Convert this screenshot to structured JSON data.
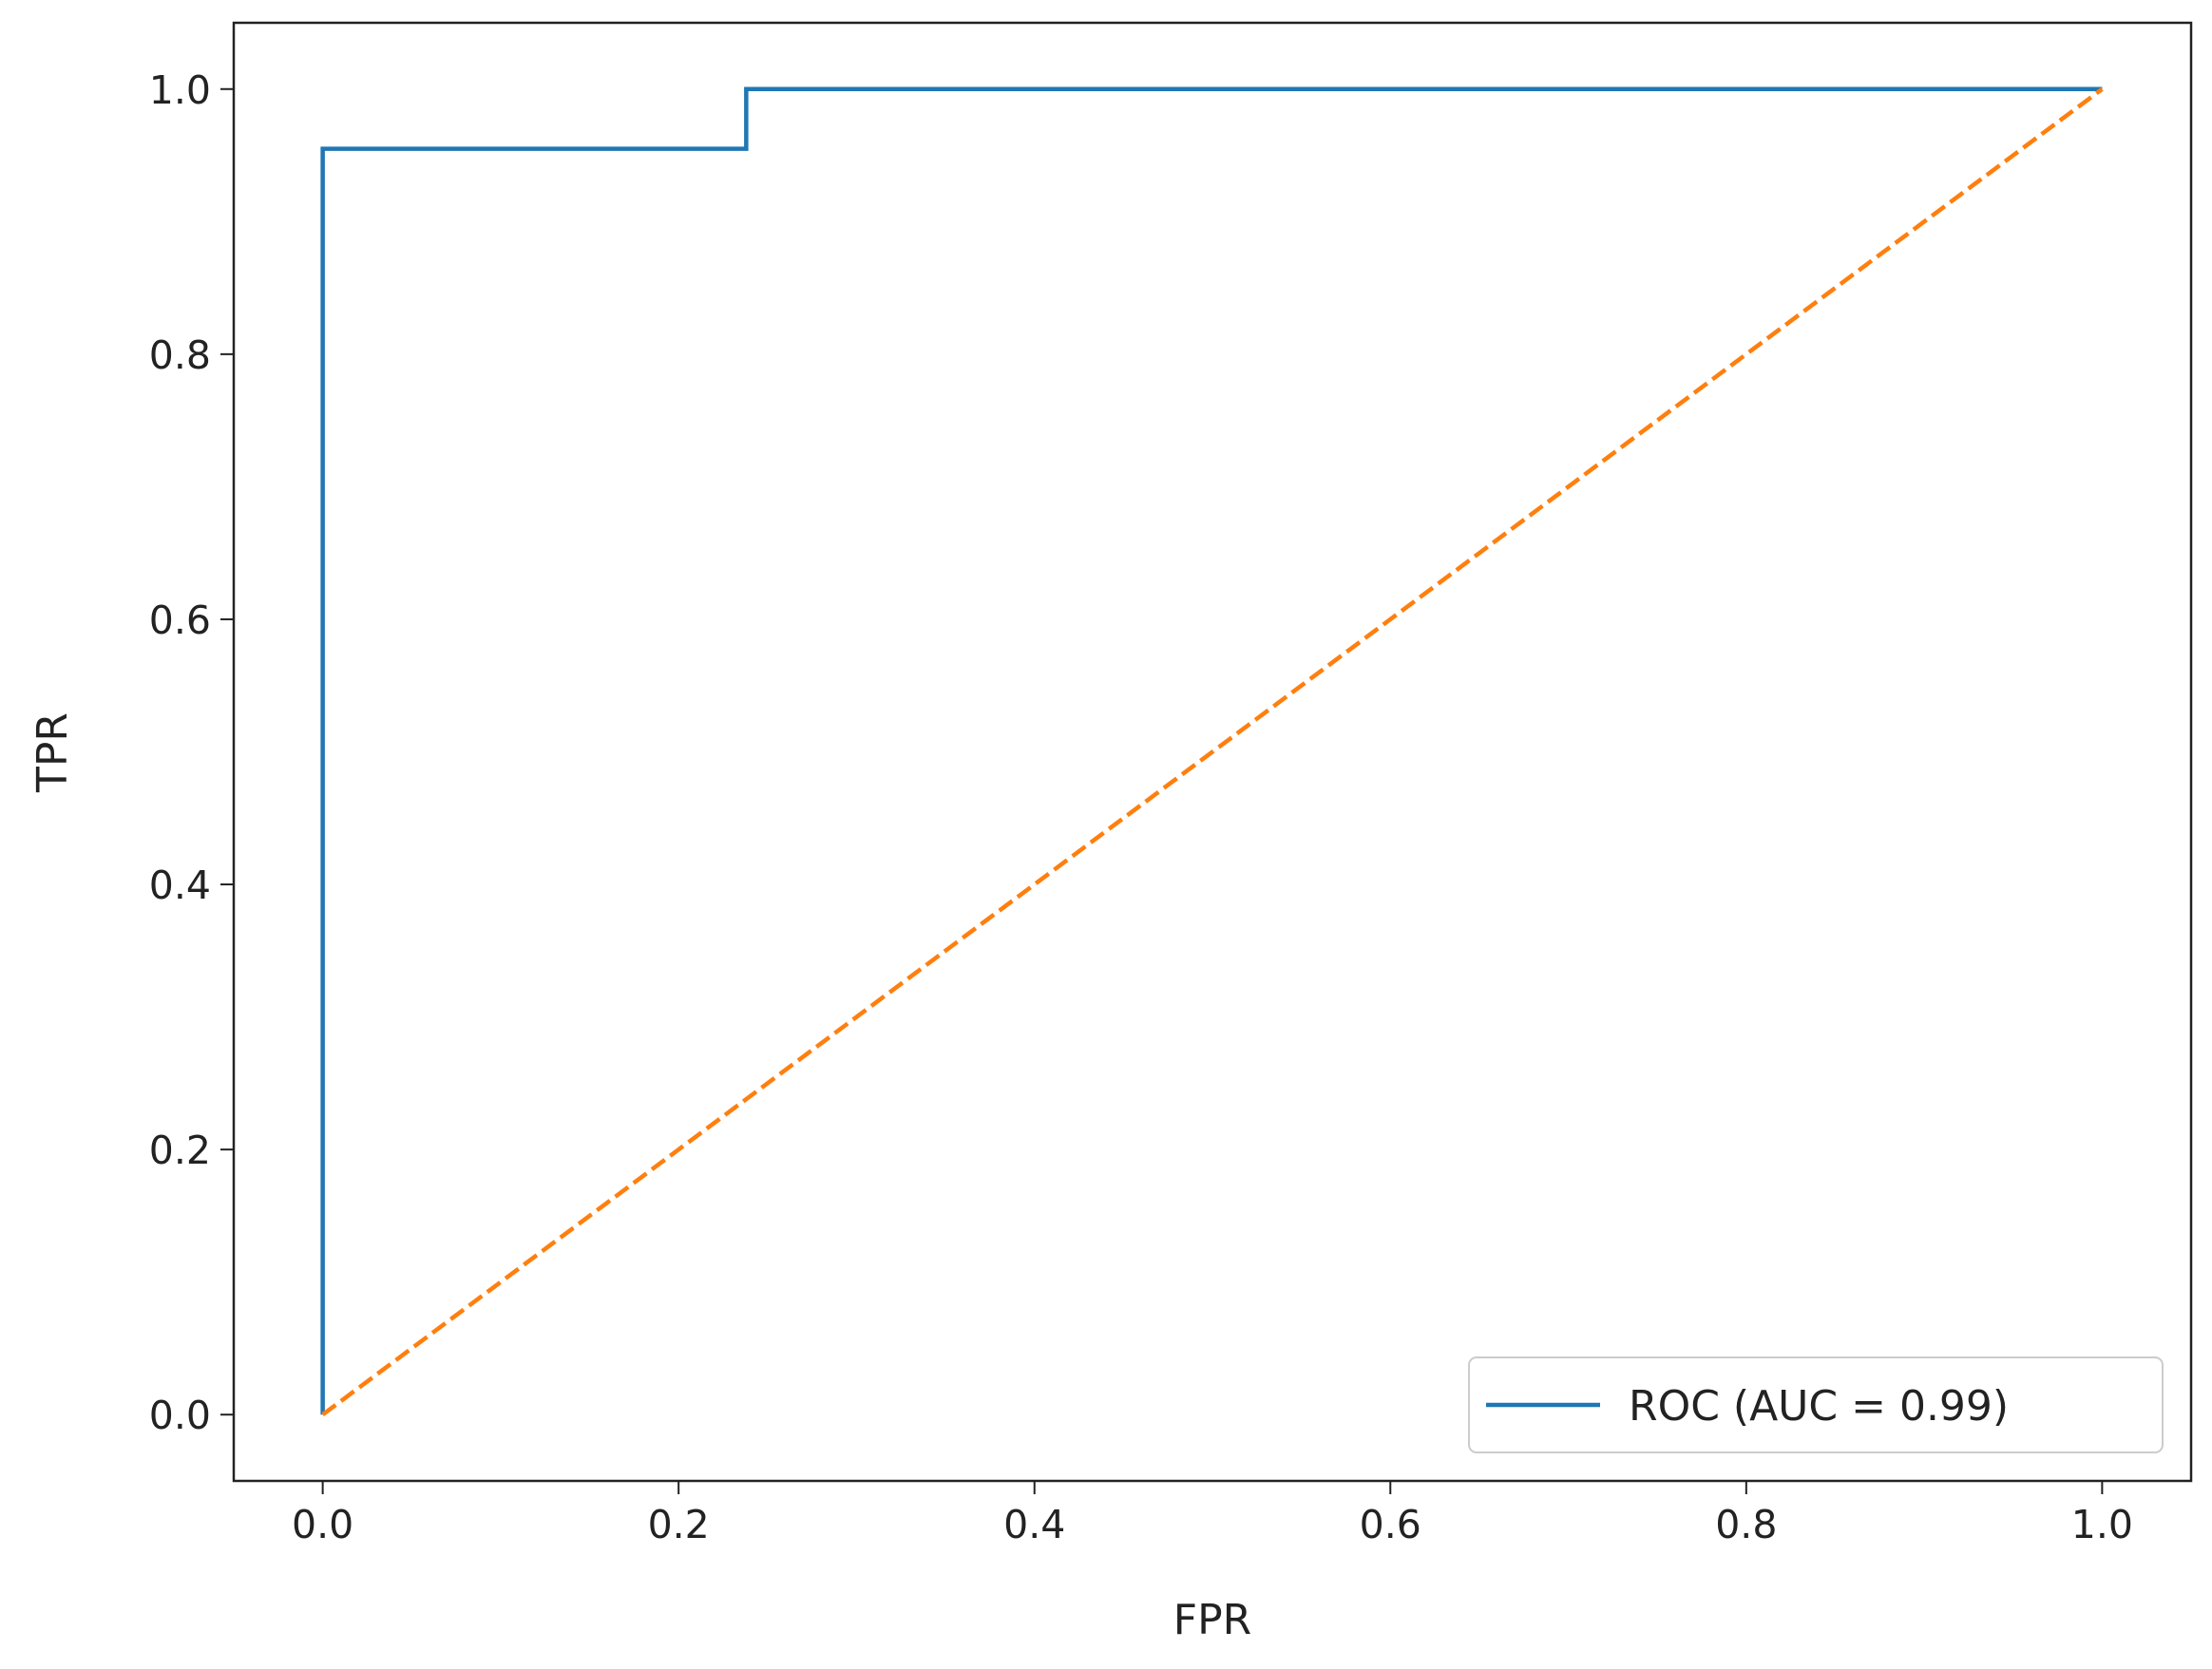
{
  "chart_data": {
    "type": "line",
    "xlabel": "FPR",
    "ylabel": "TPR",
    "xlim": [
      -0.05,
      1.05
    ],
    "ylim": [
      -0.05,
      1.05
    ],
    "xticks": [
      {
        "value": 0,
        "label": "0.0"
      },
      0.2,
      0.4,
      0.6,
      0.8,
      {
        "value": 1,
        "label": "1.0"
      }
    ],
    "yticks": [
      {
        "value": 0,
        "label": "0.0"
      },
      0.2,
      0.4,
      0.6,
      0.8,
      {
        "value": 1,
        "label": "1.0"
      }
    ],
    "legend": "lower right",
    "series": [
      {
        "name": "ROC (AUC = 0.99)",
        "color": "#1f77b4",
        "linestyle": "solid",
        "x": [
          0,
          0,
          0.238,
          0.238,
          1
        ],
        "values": [
          0,
          0.955,
          0.955,
          1,
          1
        ]
      },
      {
        "color": "#ff7f0e",
        "linestyle": "dashed",
        "x": [
          0,
          1
        ],
        "values": [
          0,
          1
        ]
      }
    ]
  }
}
